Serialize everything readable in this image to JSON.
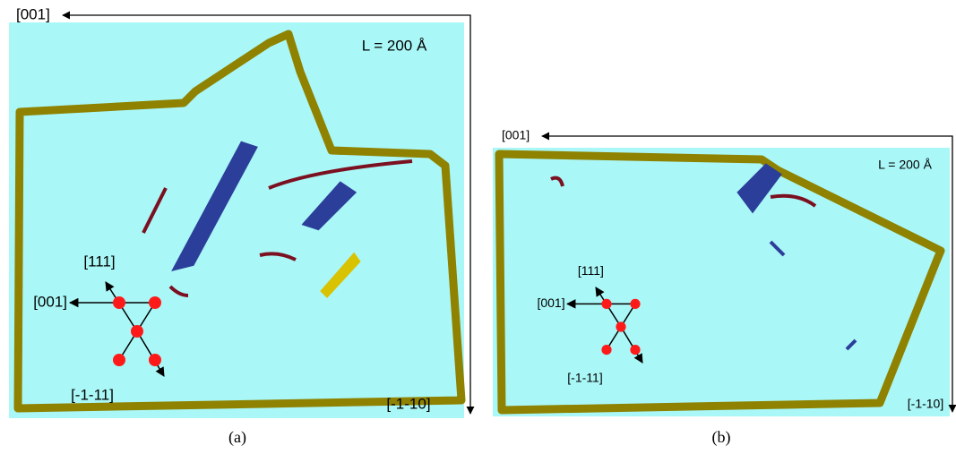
{
  "panels": [
    {
      "axis_top": "[001]",
      "scale": "L = 200 Å",
      "glyph_up": "[111]",
      "glyph_left": "[001]",
      "glyph_down": "[-1-11]",
      "axis_right": "[-1-10]",
      "caption": "(a)"
    },
    {
      "axis_top": "[001]",
      "scale": "L = 200 Å",
      "glyph_up": "[111]",
      "glyph_left": "[001]",
      "glyph_down": "[-1-11]",
      "axis_right": "[-1-10]",
      "caption": "(b)"
    }
  ]
}
